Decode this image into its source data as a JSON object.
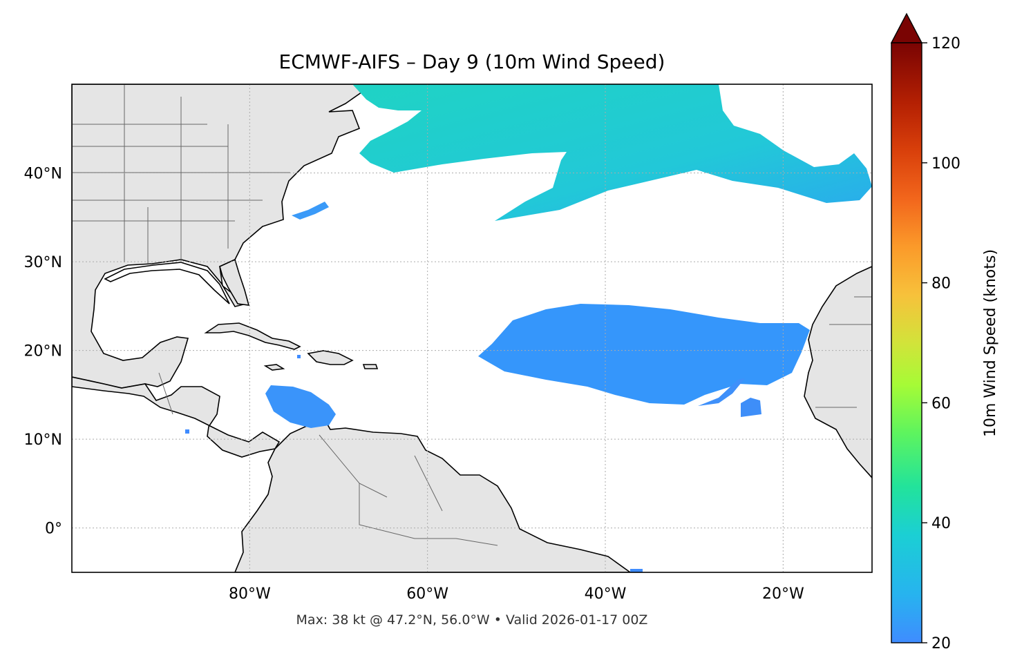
{
  "title": "ECMWF-AIFS – Day 9 (10m Wind Speed)",
  "footer": "Max: 38 kt @ 47.2°N, 56.0°W • Valid 2026-01-17 00Z",
  "map": {
    "extent": {
      "lon_min": -100,
      "lon_max": -10,
      "lat_min": -5,
      "lat_max": 50
    },
    "lat_ticks": [
      {
        "value": 40,
        "label": "40°N"
      },
      {
        "value": 30,
        "label": "30°N"
      },
      {
        "value": 20,
        "label": "20°N"
      },
      {
        "value": 10,
        "label": "10°N"
      },
      {
        "value": 0,
        "label": "0°"
      }
    ],
    "lon_ticks": [
      {
        "value": -80,
        "label": "80°W"
      },
      {
        "value": -60,
        "label": "60°W"
      },
      {
        "value": -40,
        "label": "40°W"
      },
      {
        "value": -20,
        "label": "20°W"
      }
    ],
    "gridlines": true,
    "land_color": "#e5e5e5",
    "ocean_color": "#ffffff"
  },
  "colorbar": {
    "label": "10m Wind Speed (knots)",
    "min": 20,
    "max": 120,
    "extend": "max",
    "ticks": [
      {
        "value": 20,
        "label": "20"
      },
      {
        "value": 40,
        "label": "40"
      },
      {
        "value": 60,
        "label": "60"
      },
      {
        "value": 80,
        "label": "80"
      },
      {
        "value": 100,
        "label": "100"
      },
      {
        "value": 120,
        "label": "120"
      }
    ],
    "colormap": "turbo"
  },
  "max_wind": {
    "value_kt": 38,
    "lat": 47.2,
    "lon": -56.0
  }
}
